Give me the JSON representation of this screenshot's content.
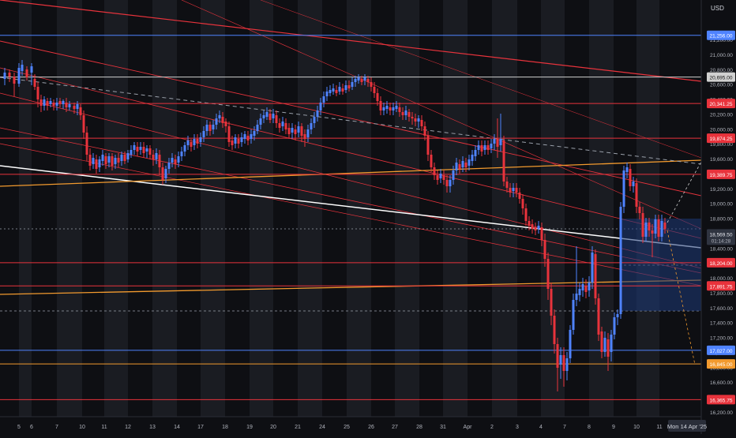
{
  "currency_label": "USD",
  "date_pill": "Mon 14 Apr '25",
  "x_axis_labels": [
    "5",
    "6",
    "7",
    "10",
    "11",
    "12",
    "13",
    "14",
    "17",
    "18",
    "19",
    "20",
    "21",
    "24",
    "25",
    "26",
    "27",
    "28",
    "31",
    "Apr",
    "2",
    "3",
    "4",
    "7",
    "8",
    "9",
    "10",
    "11"
  ],
  "price_ticks": [
    "21,200.00",
    "21,000.00",
    "20,800.00",
    "20,600.00",
    "20,400.00",
    "20,200.00",
    "20,000.00",
    "19,800.00",
    "19,600.00",
    "19,400.00",
    "19,200.00",
    "19,000.00",
    "18,800.00",
    "18,600.00",
    "18,400.00",
    "18,200.00",
    "18,000.00",
    "17,800.00",
    "17,600.00",
    "17,400.00",
    "17,200.00",
    "17,000.00",
    "16,800.00",
    "16,600.00",
    "16,400.00",
    "16,200.00"
  ],
  "current_price": {
    "value": 18569.5,
    "label": "18,569.50",
    "countdown": "01:14:28"
  },
  "levels": [
    {
      "price": 21256,
      "label": "21,256.00",
      "color": "#4f83ff"
    },
    {
      "price": 20695,
      "label": "20,695.00",
      "color": "#d0d0d0"
    },
    {
      "price": 20341.25,
      "label": "20,341.25",
      "color": "#e8333c"
    },
    {
      "price": 19874.25,
      "label": "19,874.25",
      "color": "#e8333c"
    },
    {
      "price": 19389.75,
      "label": "19,389.75",
      "color": "#e8333c"
    },
    {
      "price": 18204,
      "label": "18,204.00",
      "color": "#e8333c"
    },
    {
      "price": 17891.75,
      "label": "17,891.75",
      "color": "#e8333c"
    },
    {
      "price": 17027,
      "label": "17,027.00",
      "color": "#4f83ff"
    },
    {
      "price": 16845,
      "label": "16,845.00",
      "color": "#f29a2e"
    },
    {
      "price": 16365.75,
      "label": "16,365.75",
      "color": "#e8333c"
    }
  ],
  "colors": {
    "up": "#4f83ff",
    "down": "#e8333c",
    "orange": "#f29a2e",
    "background": "#0e0f13",
    "stripe": "#1a1c22"
  }
}
